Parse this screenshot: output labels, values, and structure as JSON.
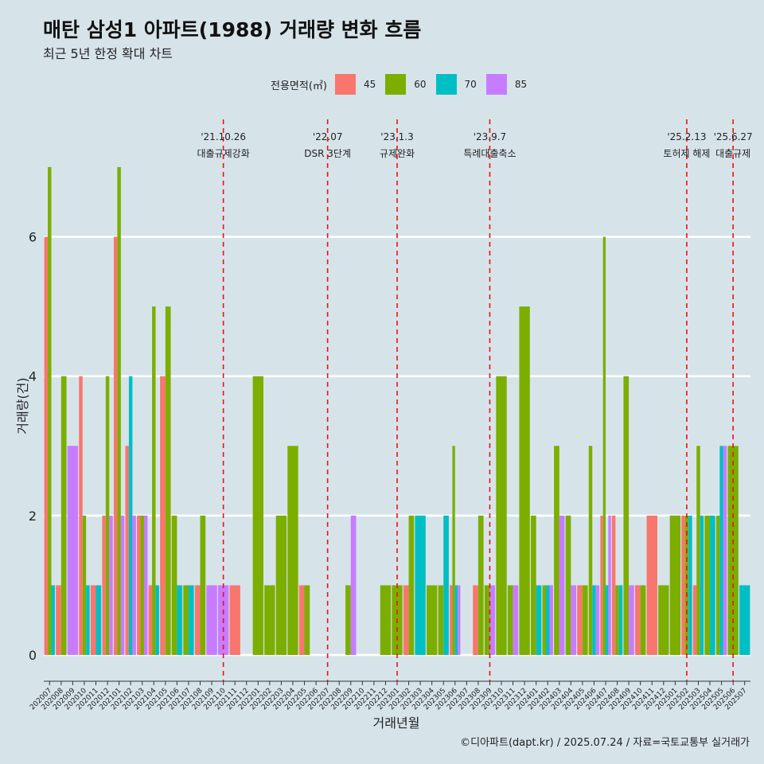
{
  "chart_data": {
    "type": "bar",
    "title": "매탄 삼성1 아파트(1988) 거래량 변화 흐름",
    "subtitle": "최근 5년 한정 확대 차트",
    "xlabel": "거래년월",
    "ylabel": "거래량(건)",
    "ylim": [
      0,
      7
    ],
    "yticks": [
      0,
      2,
      4,
      6
    ],
    "legend_title": "전용면적(㎡)",
    "categories": [
      "202007",
      "202008",
      "202009",
      "202010",
      "202011",
      "202012",
      "202101",
      "202102",
      "202103",
      "202104",
      "202105",
      "202106",
      "202107",
      "202108",
      "202109",
      "202110",
      "202111",
      "202112",
      "202201",
      "202202",
      "202203",
      "202204",
      "202205",
      "202206",
      "202207",
      "202208",
      "202209",
      "202210",
      "202211",
      "202212",
      "202301",
      "202302",
      "202303",
      "202304",
      "202305",
      "202306",
      "202307",
      "202308",
      "202309",
      "202310",
      "202311",
      "202312",
      "202401",
      "202402",
      "202403",
      "202404",
      "202405",
      "202406",
      "202407",
      "202408",
      "202409",
      "202410",
      "202411",
      "202412",
      "202501",
      "202502",
      "202503",
      "202504",
      "202505",
      "202506",
      "202507"
    ],
    "series": [
      {
        "name": "45",
        "color": "#f8766d",
        "values": [
          6,
          1,
          0,
          4,
          1,
          2,
          6,
          3,
          2,
          1,
          4,
          0,
          0,
          1,
          0,
          0,
          1,
          0,
          0,
          0,
          0,
          0,
          1,
          0,
          0,
          0,
          0,
          0,
          0,
          0,
          0,
          1,
          0,
          0,
          0,
          1,
          0,
          1,
          0,
          0,
          0,
          0,
          0,
          0,
          0,
          0,
          1,
          0,
          2,
          2,
          0,
          1,
          2,
          0,
          0,
          2,
          1,
          0,
          0,
          0,
          0
        ]
      },
      {
        "name": "60",
        "color": "#7cae00",
        "values": [
          7,
          4,
          0,
          2,
          0,
          4,
          7,
          0,
          2,
          5,
          5,
          2,
          1,
          2,
          0,
          0,
          0,
          0,
          4,
          1,
          2,
          3,
          1,
          0,
          0,
          0,
          1,
          0,
          0,
          1,
          1,
          2,
          0,
          1,
          1,
          3,
          0,
          2,
          1,
          4,
          1,
          5,
          2,
          1,
          3,
          2,
          1,
          3,
          6,
          1,
          4,
          1,
          0,
          1,
          2,
          2,
          3,
          2,
          2,
          3,
          0
        ]
      },
      {
        "name": "70",
        "color": "#00bfc4",
        "values": [
          1,
          0,
          0,
          1,
          1,
          0,
          0,
          4,
          0,
          1,
          0,
          1,
          1,
          0,
          0,
          0,
          0,
          0,
          0,
          0,
          0,
          0,
          0,
          0,
          0,
          0,
          0,
          0,
          0,
          0,
          0,
          0,
          2,
          0,
          2,
          1,
          0,
          0,
          0,
          0,
          0,
          0,
          1,
          1,
          0,
          0,
          0,
          1,
          1,
          1,
          0,
          0,
          0,
          0,
          0,
          2,
          2,
          2,
          3,
          0,
          1
        ]
      },
      {
        "name": "85",
        "color": "#c77cff",
        "values": [
          0,
          0,
          3,
          0,
          0,
          2,
          2,
          2,
          2,
          0,
          0,
          0,
          0,
          0,
          1,
          1,
          0,
          0,
          0,
          0,
          0,
          0,
          0,
          0,
          0,
          0,
          2,
          0,
          0,
          0,
          0,
          0,
          0,
          0,
          0,
          1,
          0,
          0,
          1,
          0,
          1,
          0,
          0,
          1,
          2,
          1,
          0,
          1,
          2,
          0,
          1,
          0,
          0,
          0,
          0,
          0,
          0,
          0,
          3,
          0,
          0
        ]
      }
    ],
    "annotations": [
      {
        "date": "'21.10.26",
        "label": "대출규제강화",
        "x": "202110"
      },
      {
        "date": "'22.07",
        "label": "DSR 3단계",
        "x": "202207"
      },
      {
        "date": "'23.1.3",
        "label": "규제완화",
        "x": "202301"
      },
      {
        "date": "'23.9.7",
        "label": "특례대출축소",
        "x": "202309"
      },
      {
        "date": "'25.2.13",
        "label": "토허제 해제",
        "x": "202502"
      },
      {
        "date": "'25.6.27",
        "label": "대출규제",
        "x": "202506"
      }
    ]
  },
  "footer": "©디아파트(dapt.kr) / 2025.07.24 / 자료=국토교통부 실거래가"
}
